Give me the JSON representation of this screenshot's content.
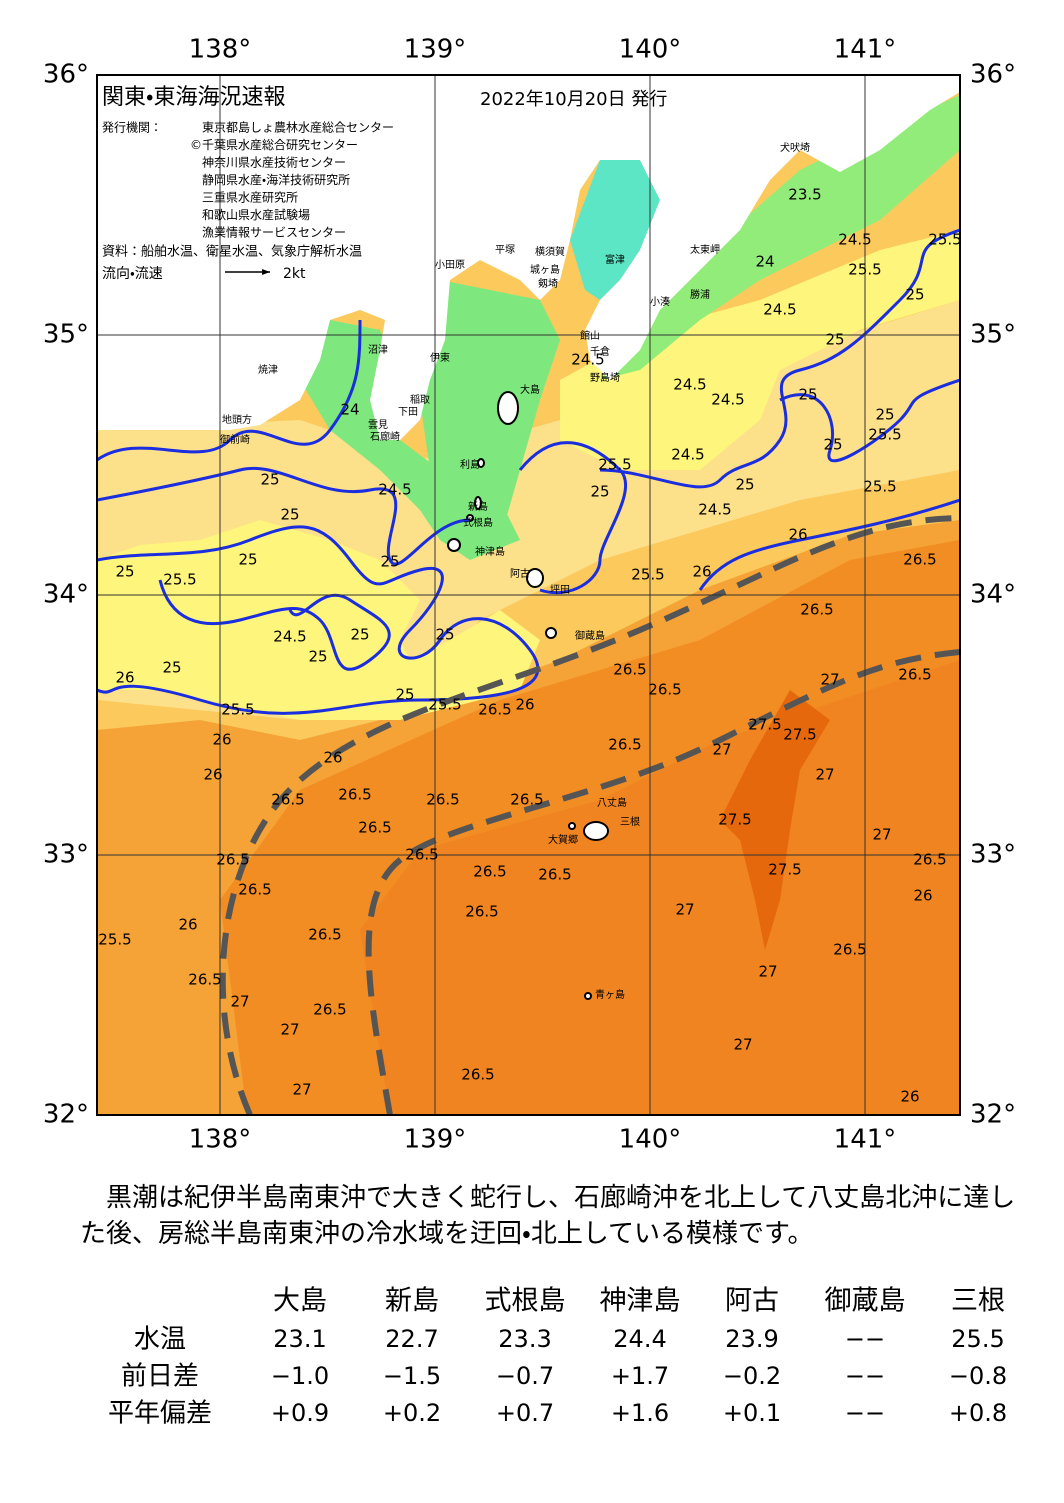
{
  "header": {
    "title": "関東・東海海況速報",
    "date": "2022年10月20日 発行"
  },
  "issuers": {
    "label": "発行機関：",
    "names": [
      "東京都島しょ農林水産総合センター",
      "©千葉県水産総合研究センター",
      "神奈川県水産技術センター",
      "静岡県水産・海洋技術研究所",
      "三重県水産研究所",
      "和歌山県水産試験場",
      "漁業情報サービスセンター"
    ]
  },
  "sources": "資料：船舶水温、衛星水温、気象庁解析水温",
  "legend": {
    "label": "流向・流速",
    "scale": "2kt"
  },
  "map": {
    "lon_ticks": [
      {
        "value": 138,
        "label": "138°"
      },
      {
        "value": 139,
        "label": "139°"
      },
      {
        "value": 140,
        "label": "140°"
      },
      {
        "value": 141,
        "label": "141°"
      }
    ],
    "lat_ticks": [
      {
        "value": 36,
        "label": "36°"
      },
      {
        "value": 35,
        "label": "35°"
      },
      {
        "value": 34,
        "label": "34°"
      },
      {
        "value": 33,
        "label": "33°"
      },
      {
        "value": 32,
        "label": "32°"
      }
    ],
    "places": [
      "犬吠埼",
      "太東岬",
      "勝浦",
      "小湊",
      "富津",
      "館山",
      "千倉",
      "野島埼",
      "平塚",
      "横須賀",
      "城ヶ島",
      "剱埼",
      "小田原",
      "沼津",
      "伊東",
      "焼津",
      "地頭方",
      "御前崎",
      "雲見",
      "石廊崎",
      "下田",
      "稲取",
      "大島",
      "利島",
      "新島",
      "式根島",
      "神津島",
      "阿古",
      "坪田",
      "御蔵島",
      "八丈島",
      "三根",
      "大賀郷",
      "青ヶ島"
    ],
    "contour_labels": [
      "24.5",
      "24.5",
      "24.5",
      "24.5",
      "23.5",
      "24",
      "24.5",
      "25.5",
      "25.5",
      "25",
      "25",
      "25",
      "25",
      "25.5",
      "25",
      "24.5",
      "25.5",
      "25",
      "25",
      "24.5",
      "25.5",
      "26",
      "26.5",
      "26",
      "25.5",
      "24",
      "25",
      "24.5",
      "25",
      "25",
      "25",
      "25",
      "25.5",
      "24.5",
      "25",
      "25",
      "25",
      "26",
      "25",
      "25",
      "25.5",
      "25.5",
      "26.5",
      "26",
      "26",
      "26",
      "26",
      "26.5",
      "26.5",
      "26.5",
      "26.5",
      "27",
      "27",
      "26.5",
      "27.5",
      "27.5",
      "27",
      "26.5",
      "26.5",
      "26.5",
      "26.5",
      "26.5",
      "26.5",
      "27.5",
      "27",
      "26.5",
      "26.5",
      "26.5",
      "27.5",
      "26.5",
      "26.5",
      "26",
      "27",
      "26.5",
      "26",
      "26.5",
      "25.5",
      "26.5",
      "27",
      "26.5",
      "27",
      "26.5",
      "27",
      "27",
      "26.5",
      "27",
      "26"
    ]
  },
  "summary": "黒潮は紀伊半島南東沖で大きく蛇行し、石廊崎沖を北上して八丈島北沖に達した後、房総半島南東沖の冷水域を迂回・北上している模様です。",
  "table": {
    "columns": [
      "大島",
      "新島",
      "式根島",
      "神津島",
      "阿古",
      "御蔵島",
      "三根"
    ],
    "rows": [
      [
        "水温",
        "23.1",
        "22.7",
        "23.3",
        "24.4",
        "23.9",
        "−−",
        "25.5"
      ],
      [
        "前日差",
        "−1.0",
        "−1.5",
        "−0.7",
        "+1.7",
        "−0.2",
        "−−",
        "−0.8"
      ],
      [
        "平年偏差",
        "+0.9",
        "+0.2",
        "+0.7",
        "+1.6",
        "+0.1",
        "−−",
        "+0.8"
      ]
    ]
  }
}
